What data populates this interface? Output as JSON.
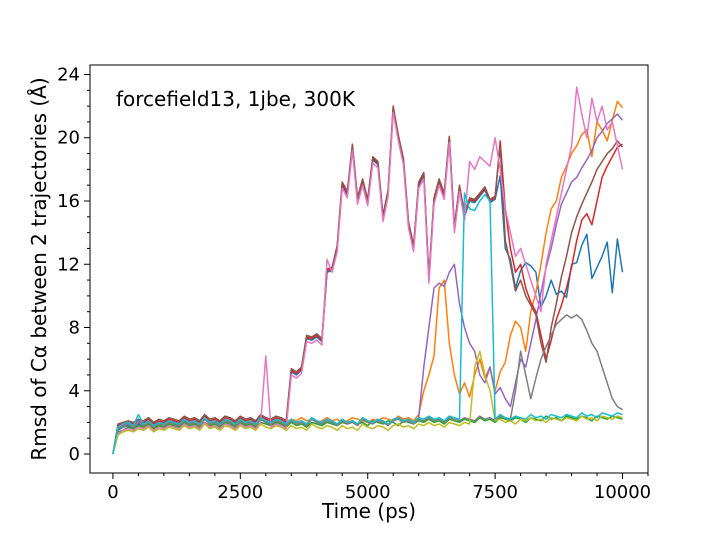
{
  "chart_data": {
    "type": "line",
    "xlabel": "Time (ps)",
    "ylabel": "Rmsd of Cα between 2 trajectories (Å)",
    "annotation": "forcefield13, 1jbe, 300K",
    "xlim": [
      -450,
      10500
    ],
    "ylim": [
      -1.2,
      24.6
    ],
    "x_ticks": [
      0,
      2500,
      5000,
      7500,
      10000
    ],
    "y_ticks": [
      0,
      4,
      8,
      12,
      16,
      20,
      24
    ],
    "x_minor_step": 500,
    "y_minor_step": 1,
    "x": [
      0,
      100,
      200,
      300,
      400,
      500,
      600,
      700,
      800,
      900,
      1000,
      1100,
      1200,
      1300,
      1400,
      1500,
      1600,
      1700,
      1800,
      1900,
      2000,
      2100,
      2200,
      2300,
      2400,
      2500,
      2600,
      2700,
      2800,
      2900,
      3000,
      3100,
      3200,
      3300,
      3400,
      3500,
      3600,
      3700,
      3800,
      3900,
      4000,
      4100,
      4200,
      4300,
      4400,
      4500,
      4600,
      4700,
      4800,
      4900,
      5000,
      5100,
      5200,
      5300,
      5400,
      5500,
      5600,
      5700,
      5800,
      5900,
      6000,
      6100,
      6200,
      6300,
      6400,
      6500,
      6600,
      6700,
      6800,
      6900,
      7000,
      7100,
      7200,
      7300,
      7400,
      7500,
      7600,
      7700,
      7800,
      7900,
      8000,
      8100,
      8200,
      8300,
      8400,
      8500,
      8600,
      8700,
      8800,
      8900,
      9000,
      9100,
      9200,
      9300,
      9400,
      9500,
      9600,
      9700,
      9800,
      9900,
      10000
    ],
    "series": [
      {
        "color": "#1f77b4",
        "values": [
          0,
          1.5,
          1.7,
          1.8,
          1.6,
          1.9,
          1.8,
          2.0,
          1.7,
          1.9,
          1.8,
          2.0,
          1.9,
          1.8,
          2.1,
          1.9,
          2.0,
          1.8,
          2.2,
          1.9,
          2.0,
          1.9,
          2.1,
          2.0,
          1.8,
          2.1,
          1.9,
          2.0,
          1.8,
          2.2,
          2.0,
          1.9,
          2.1,
          2.0,
          1.8,
          5.2,
          5.0,
          5.3,
          7.3,
          7.2,
          7.4,
          7.1,
          11.5,
          11.6,
          13.0,
          17.0,
          16.4,
          19.4,
          16.0,
          17.2,
          15.9,
          18.6,
          18.3,
          14.9,
          16.5,
          21.8,
          20.0,
          18.5,
          14.5,
          13.0,
          17.0,
          17.6,
          11.0,
          16.0,
          17.2,
          16.3,
          19.9,
          14.2,
          16.8,
          15.0,
          16.0,
          15.9,
          16.3,
          16.7,
          15.9,
          16.1,
          17.6,
          13.0,
          12.3,
          10.5,
          11.6,
          12.1,
          11.9,
          11.5,
          9.3,
          10.0,
          11.0,
          10.1,
          10.3,
          9.9,
          12.0,
          12.1,
          13.2,
          13.9,
          11.1,
          11.8,
          12.5,
          13.4,
          10.2,
          13.6,
          11.5
        ]
      },
      {
        "color": "#ff7f0e",
        "values": [
          0,
          1.6,
          1.8,
          1.9,
          1.7,
          2.0,
          1.9,
          1.8,
          1.6,
          2.0,
          1.9,
          1.8,
          2.1,
          1.9,
          2.0,
          1.8,
          2.2,
          1.9,
          2.0,
          1.8,
          2.1,
          2.0,
          1.9,
          2.1,
          2.0,
          1.9,
          2.1,
          2.0,
          1.9,
          2.2,
          2.1,
          2.0,
          1.9,
          2.1,
          2.0,
          2.2,
          2.1,
          2.3,
          2.1,
          2.2,
          2.0,
          2.1,
          2.3,
          2.1,
          2.2,
          2.0,
          2.1,
          2.3,
          2.2,
          2.1,
          2.0,
          2.2,
          2.1,
          2.3,
          2.2,
          2.1,
          2.4,
          2.2,
          2.3,
          2.1,
          2.5,
          4.0,
          5.0,
          6.2,
          10.5,
          11.0,
          7.0,
          5.0,
          3.8,
          4.5,
          3.6,
          5.0,
          6.0,
          4.8,
          5.5,
          4.0,
          5.2,
          5.8,
          7.5,
          8.4,
          8.0,
          6.5,
          9.0,
          10.2,
          12.0,
          14.0,
          15.5,
          16.0,
          17.5,
          18.2,
          19.0,
          19.5,
          20.2,
          20.5,
          18.8,
          21.0,
          20.5,
          19.8,
          21.1,
          22.3,
          21.9
        ]
      },
      {
        "color": "#2ca02c",
        "values": [
          0,
          1.4,
          1.5,
          1.7,
          1.6,
          1.8,
          1.7,
          1.9,
          1.6,
          1.8,
          1.7,
          1.9,
          1.8,
          1.7,
          2.0,
          1.8,
          1.9,
          1.7,
          2.0,
          1.8,
          1.9,
          1.7,
          2.0,
          1.9,
          1.7,
          2.0,
          1.8,
          1.9,
          1.7,
          2.0,
          1.9,
          1.8,
          2.0,
          1.9,
          1.7,
          2.0,
          1.8,
          1.9,
          1.7,
          2.0,
          1.9,
          1.8,
          2.0,
          1.9,
          1.8,
          2.0,
          1.9,
          2.1,
          1.9,
          2.0,
          1.8,
          2.1,
          2.0,
          1.9,
          2.1,
          2.0,
          1.8,
          2.1,
          2.0,
          1.9,
          2.1,
          2.0,
          2.2,
          2.0,
          2.1,
          1.9,
          2.2,
          2.1,
          2.0,
          2.2,
          2.1,
          2.0,
          2.3,
          2.1,
          2.2,
          2.0,
          2.3,
          2.2,
          2.1,
          2.3,
          2.2,
          2.0,
          2.3,
          2.2,
          2.1,
          2.4,
          2.2,
          2.3,
          2.1,
          2.4,
          2.3,
          2.2,
          2.4,
          2.3,
          2.1,
          2.4,
          2.3,
          2.2,
          2.4,
          2.3,
          2.2
        ]
      },
      {
        "color": "#d62728",
        "values": [
          0,
          1.8,
          1.9,
          2.0,
          1.9,
          2.1,
          2.0,
          2.2,
          1.9,
          2.1,
          2.0,
          2.2,
          2.1,
          2.0,
          2.3,
          2.1,
          2.2,
          2.0,
          2.4,
          2.1,
          2.2,
          2.0,
          2.3,
          2.2,
          2.0,
          2.3,
          2.1,
          2.2,
          2.0,
          2.4,
          2.2,
          2.1,
          2.3,
          2.2,
          2.0,
          5.3,
          5.1,
          5.4,
          7.4,
          7.3,
          7.5,
          7.2,
          11.6,
          11.7,
          13.1,
          17.1,
          16.5,
          19.5,
          16.1,
          17.3,
          16.0,
          18.7,
          18.4,
          15.0,
          16.6,
          22.0,
          20.1,
          18.6,
          14.6,
          13.1,
          17.1,
          17.7,
          11.1,
          16.1,
          17.3,
          16.4,
          20.0,
          14.3,
          16.9,
          15.1,
          16.1,
          16.0,
          16.4,
          16.8,
          16.0,
          16.2,
          19.8,
          15.5,
          13.0,
          11.5,
          12.0,
          10.5,
          9.6,
          9.0,
          7.5,
          6.0,
          7.2,
          8.5,
          9.4,
          10.5,
          11.8,
          13.5,
          14.8,
          15.2,
          14.5,
          16.0,
          17.5,
          18.2,
          18.8,
          19.4,
          19.6
        ]
      },
      {
        "color": "#9467bd",
        "values": [
          0,
          1.7,
          1.8,
          2.0,
          1.8,
          2.1,
          1.9,
          2.1,
          1.8,
          2.0,
          1.9,
          2.1,
          2.0,
          1.9,
          2.2,
          2.0,
          2.1,
          1.9,
          2.3,
          2.0,
          2.1,
          1.9,
          2.2,
          2.1,
          1.9,
          2.2,
          2.0,
          2.1,
          1.9,
          2.3,
          2.1,
          2.0,
          2.2,
          2.1,
          1.9,
          2.2,
          2.0,
          2.1,
          1.9,
          2.3,
          2.1,
          2.0,
          2.2,
          2.1,
          1.9,
          2.2,
          2.0,
          2.1,
          1.9,
          2.3,
          2.1,
          2.0,
          2.2,
          2.1,
          1.9,
          2.2,
          2.3,
          2.1,
          2.2,
          2.0,
          2.3,
          5.5,
          8.0,
          10.5,
          10.8,
          10.6,
          11.5,
          12.0,
          9.5,
          8.0,
          7.0,
          6.5,
          5.0,
          4.5,
          5.5,
          3.8,
          4.2,
          3.5,
          3.0,
          4.5,
          6.0,
          5.5,
          7.0,
          8.5,
          10.2,
          11.8,
          13.0,
          14.5,
          15.8,
          16.5,
          17.2,
          17.5,
          18.1,
          18.6,
          19.2,
          20.0,
          20.4,
          20.9,
          21.2,
          21.5,
          21.1
        ]
      },
      {
        "color": "#8c564b",
        "values": [
          0,
          1.9,
          2.0,
          2.1,
          2.0,
          2.2,
          2.1,
          2.3,
          2.0,
          2.2,
          2.1,
          2.3,
          2.2,
          2.1,
          2.4,
          2.2,
          2.3,
          2.1,
          2.5,
          2.2,
          2.3,
          2.1,
          2.4,
          2.3,
          2.1,
          2.4,
          2.2,
          2.3,
          2.1,
          2.5,
          2.3,
          2.2,
          2.4,
          2.3,
          2.1,
          5.4,
          5.2,
          5.5,
          7.5,
          7.4,
          7.6,
          7.3,
          11.7,
          11.8,
          13.2,
          17.2,
          16.6,
          19.6,
          16.2,
          17.4,
          16.1,
          18.8,
          18.5,
          15.1,
          16.7,
          21.9,
          20.2,
          18.7,
          14.7,
          13.2,
          17.2,
          17.8,
          11.2,
          16.2,
          17.4,
          16.5,
          20.1,
          14.4,
          17.0,
          15.2,
          16.2,
          16.1,
          16.5,
          16.9,
          16.1,
          16.3,
          19.5,
          13.5,
          12.0,
          10.3,
          11.0,
          10.0,
          9.4,
          8.8,
          7.0,
          5.8,
          8.0,
          9.5,
          11.2,
          12.5,
          14.0,
          15.0,
          15.8,
          16.5,
          17.2,
          18.0,
          18.5,
          19.0,
          19.3,
          19.8,
          19.4
        ]
      },
      {
        "color": "#e377c2",
        "values": [
          0,
          1.3,
          1.5,
          1.6,
          1.5,
          1.7,
          1.6,
          1.8,
          1.5,
          1.7,
          1.6,
          1.8,
          1.7,
          1.6,
          1.9,
          1.7,
          1.8,
          1.6,
          2.0,
          1.7,
          1.8,
          1.6,
          1.9,
          1.8,
          1.6,
          1.9,
          1.7,
          1.8,
          1.6,
          2.0,
          6.2,
          1.7,
          1.9,
          1.8,
          1.6,
          5.0,
          4.8,
          5.1,
          7.1,
          7.0,
          7.2,
          6.9,
          12.3,
          11.5,
          12.8,
          16.8,
          16.2,
          19.2,
          15.8,
          17.0,
          15.7,
          18.4,
          18.1,
          14.7,
          16.3,
          21.6,
          19.8,
          18.3,
          14.3,
          12.8,
          16.8,
          17.4,
          10.8,
          15.8,
          17.0,
          16.1,
          19.7,
          14.0,
          16.6,
          14.8,
          18.5,
          18.0,
          18.8,
          18.5,
          18.2,
          20.0,
          18.0,
          15.5,
          14.0,
          12.5,
          13.0,
          12.0,
          11.0,
          10.0,
          9.0,
          12.0,
          13.5,
          15.0,
          16.5,
          18.0,
          19.5,
          23.2,
          21.5,
          20.0,
          22.5,
          21.0,
          22.0,
          20.5,
          21.0,
          19.5,
          18.0
        ]
      },
      {
        "color": "#7f7f7f",
        "values": [
          0,
          1.6,
          1.7,
          1.9,
          1.7,
          2.0,
          1.8,
          2.0,
          1.7,
          1.9,
          1.8,
          2.0,
          1.9,
          1.8,
          2.1,
          1.9,
          2.0,
          1.8,
          2.2,
          1.9,
          2.0,
          1.8,
          2.1,
          2.0,
          1.8,
          2.1,
          1.9,
          2.0,
          1.8,
          2.2,
          2.0,
          1.9,
          2.1,
          2.0,
          1.8,
          2.1,
          1.9,
          2.0,
          1.8,
          2.2,
          2.0,
          1.9,
          2.1,
          2.0,
          1.8,
          2.1,
          1.9,
          2.0,
          1.8,
          2.2,
          2.0,
          1.9,
          2.1,
          2.0,
          1.8,
          2.1,
          2.2,
          2.0,
          2.1,
          1.9,
          2.2,
          2.1,
          2.3,
          2.1,
          2.2,
          2.0,
          2.3,
          2.2,
          2.1,
          2.3,
          2.2,
          2.1,
          2.4,
          2.2,
          2.3,
          2.1,
          2.4,
          2.3,
          2.2,
          4.0,
          6.5,
          5.0,
          3.5,
          4.8,
          6.0,
          6.8,
          7.5,
          8.2,
          8.5,
          8.8,
          8.6,
          8.8,
          8.5,
          7.8,
          7.0,
          6.5,
          5.5,
          4.5,
          3.5,
          3.0,
          2.8
        ]
      },
      {
        "color": "#bcbd22",
        "values": [
          0,
          1.2,
          1.4,
          1.5,
          1.4,
          1.6,
          1.5,
          1.7,
          1.4,
          1.6,
          1.5,
          1.7,
          1.6,
          1.5,
          1.8,
          1.6,
          1.7,
          1.5,
          1.9,
          1.6,
          1.7,
          1.5,
          1.8,
          1.7,
          1.5,
          1.8,
          1.6,
          1.7,
          1.5,
          1.9,
          1.7,
          1.6,
          1.8,
          1.7,
          1.5,
          1.8,
          1.6,
          1.7,
          1.5,
          1.9,
          1.7,
          1.6,
          1.8,
          1.7,
          1.5,
          1.8,
          1.6,
          1.7,
          1.5,
          1.9,
          1.7,
          1.6,
          1.8,
          1.7,
          1.5,
          1.8,
          1.9,
          1.7,
          1.8,
          1.6,
          1.9,
          1.8,
          2.0,
          1.8,
          1.9,
          1.7,
          2.0,
          1.9,
          1.8,
          2.0,
          1.9,
          5.5,
          6.5,
          5.0,
          4.0,
          2.1,
          2.2,
          2.0,
          2.1,
          1.9,
          2.2,
          2.1,
          2.3,
          2.1,
          2.2,
          2.0,
          2.3,
          2.2,
          2.1,
          2.3,
          2.2,
          2.1,
          2.4,
          2.2,
          2.3,
          2.1,
          2.4,
          2.3,
          2.2,
          2.4,
          2.3
        ]
      },
      {
        "color": "#17becf",
        "values": [
          0,
          1.7,
          1.9,
          2.0,
          1.8,
          2.5,
          1.9,
          2.1,
          1.8,
          2.0,
          1.9,
          2.1,
          2.0,
          1.9,
          2.2,
          2.0,
          2.1,
          1.9,
          2.3,
          2.0,
          2.1,
          1.9,
          2.2,
          2.1,
          1.9,
          2.2,
          2.0,
          2.1,
          1.9,
          2.3,
          2.1,
          2.0,
          2.2,
          2.1,
          1.9,
          2.2,
          2.0,
          2.1,
          1.9,
          2.3,
          2.1,
          2.0,
          2.2,
          2.1,
          1.9,
          2.2,
          2.0,
          2.1,
          1.9,
          2.3,
          2.1,
          2.0,
          2.2,
          2.1,
          1.9,
          2.2,
          2.3,
          2.1,
          2.2,
          2.0,
          2.3,
          2.2,
          2.4,
          2.2,
          2.3,
          2.1,
          2.4,
          2.3,
          2.2,
          16.5,
          15.5,
          15.4,
          16.0,
          16.4,
          16.0,
          2.2,
          2.5,
          2.3,
          2.2,
          2.4,
          2.3,
          2.2,
          2.5,
          2.3,
          2.4,
          2.2,
          2.5,
          2.4,
          2.3,
          2.5,
          2.4,
          2.3,
          2.6,
          2.4,
          2.5,
          2.3,
          2.6,
          2.5,
          2.4,
          2.6,
          2.5
        ]
      }
    ]
  }
}
